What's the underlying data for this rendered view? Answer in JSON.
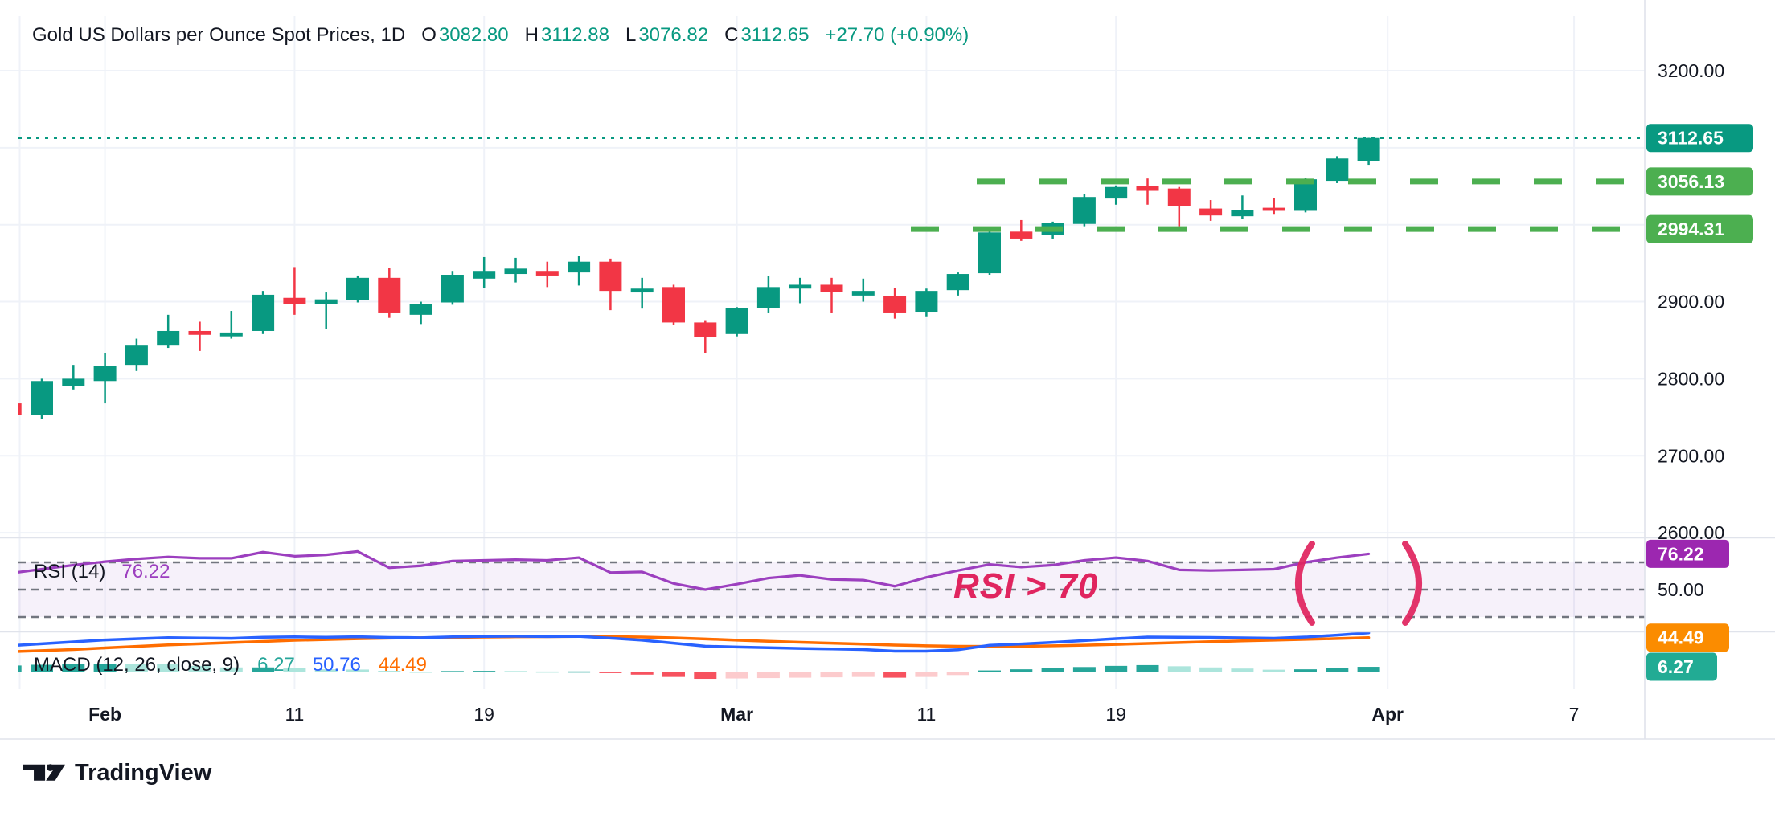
{
  "header": {
    "title": "Gold US Dollars per Ounce Spot Prices, 1D",
    "open_label": "O",
    "open": "3082.80",
    "high_label": "H",
    "high": "3112.88",
    "low_label": "L",
    "low": "3076.82",
    "close_label": "C",
    "close": "3112.65",
    "change": "+27.70 (+0.90%)"
  },
  "rsi_panel": {
    "name": "RSI (14)",
    "value": "76.22"
  },
  "macd_panel": {
    "name": "MACD (12, 26, close, 9)",
    "histogram": "6.27",
    "macd": "50.76",
    "signal": "44.49"
  },
  "annotation": {
    "text": "RSI > 70",
    "color": "#E0255F"
  },
  "watermark": {
    "text": "TradingView"
  },
  "colors": {
    "up": "#089981",
    "down": "#F23645",
    "hist_up": "#26A69A",
    "hist_up_light": "#ACE5DC",
    "hist_down": "#F7525F",
    "hist_down_light": "#FCCBCD",
    "macd": "#2962FF",
    "signal": "#FF6D00",
    "rsi": "#9C3FBF",
    "rsi_badge": "#9C27B0",
    "level_green": "#4CAF50",
    "last_price": "#089981",
    "annotation_pink": "#E0255F",
    "grid": "#EFF2F8",
    "separator": "#E0E3EB",
    "axis_text": "#131722",
    "rsi_dash": "#72767F",
    "badge_orange": "#FB8C00",
    "badge_hist": "#22AB94",
    "rsi_band_fill": "rgba(126,63,191,0.07)"
  },
  "axis": {
    "price_ticks": [
      {
        "label": "3200.00",
        "value": 3200
      },
      {
        "label": "2900.00",
        "value": 2900
      },
      {
        "label": "2800.00",
        "value": 2800
      },
      {
        "label": "2700.00",
        "value": 2700
      },
      {
        "label": "2600.00",
        "value": 2600
      }
    ],
    "rsi_tick": {
      "label": "50.00",
      "value": 50
    },
    "time_ticks": [
      {
        "label": "",
        "index": 0.3,
        "bold": false
      },
      {
        "label": "Feb",
        "index": 3,
        "bold": true
      },
      {
        "label": "11",
        "index": 9,
        "bold": false
      },
      {
        "label": "19",
        "index": 15,
        "bold": false
      },
      {
        "label": "Mar",
        "index": 23,
        "bold": true
      },
      {
        "label": "11",
        "index": 29,
        "bold": false
      },
      {
        "label": "19",
        "index": 35,
        "bold": false
      },
      {
        "label": "Apr",
        "index": 43.6,
        "bold": true
      },
      {
        "label": "7",
        "index": 49.5,
        "bold": false
      }
    ],
    "badges": [
      {
        "label": "3112.65",
        "bg": "#089981",
        "panel": "price",
        "value": 3112.65
      },
      {
        "label": "3056.13",
        "bg": "#4CAF50",
        "panel": "price",
        "value": 3056.13
      },
      {
        "label": "2994.31",
        "bg": "#4CAF50",
        "panel": "price",
        "value": 2994.31
      },
      {
        "label": "76.22",
        "bg": "#9C27B0",
        "panel": "rsi",
        "value": 76.22
      },
      {
        "label": "44.49",
        "bg": "#FB8C00",
        "panel": "macd",
        "value": 44.49
      },
      {
        "label": "6.27",
        "bg": "#22AB94",
        "panel": "macd",
        "value": 6.27
      }
    ]
  },
  "chart_data": {
    "type": "candlestick",
    "title": "Gold US Dollars per Ounce Spot Prices",
    "interval": "1D",
    "last_ohlc": {
      "open": 3082.8,
      "high": 3112.88,
      "low": 3076.82,
      "close": 3112.65,
      "change": 27.7,
      "change_pct": 0.9
    },
    "price_axis_ticks": [
      3200,
      2900,
      2800,
      2700,
      2600
    ],
    "price_gridlines": [
      3200,
      3100,
      3000,
      2900,
      2800,
      2700,
      2600
    ],
    "x_tick_labels": [
      "Feb",
      "11",
      "19",
      "Mar",
      "11",
      "19",
      "Apr",
      "7"
    ],
    "levels": {
      "last_close_dotted": 3112.65,
      "resistance_dashed": 3056.13,
      "support_dashed": 2994.31
    },
    "candles_ohlc": [
      [
        2768,
        2770,
        2750,
        2753
      ],
      [
        2753,
        2800,
        2748,
        2797
      ],
      [
        2791,
        2818,
        2786,
        2800
      ],
      [
        2797,
        2833,
        2768,
        2817
      ],
      [
        2818,
        2852,
        2810,
        2843
      ],
      [
        2843,
        2883,
        2840,
        2862
      ],
      [
        2862,
        2874,
        2836,
        2857
      ],
      [
        2855,
        2888,
        2852,
        2860
      ],
      [
        2862,
        2914,
        2858,
        2909
      ],
      [
        2905,
        2945,
        2883,
        2897
      ],
      [
        2897,
        2912,
        2865,
        2903
      ],
      [
        2902,
        2934,
        2899,
        2931
      ],
      [
        2931,
        2944,
        2879,
        2886
      ],
      [
        2883,
        2900,
        2871,
        2897
      ],
      [
        2899,
        2940,
        2896,
        2935
      ],
      [
        2930,
        2958,
        2918,
        2940
      ],
      [
        2936,
        2957,
        2925,
        2943
      ],
      [
        2940,
        2952,
        2919,
        2934
      ],
      [
        2938,
        2959,
        2921,
        2952
      ],
      [
        2952,
        2956,
        2889,
        2914
      ],
      [
        2912,
        2931,
        2891,
        2917
      ],
      [
        2919,
        2922,
        2870,
        2873
      ],
      [
        2873,
        2876,
        2833,
        2854
      ],
      [
        2858,
        2893,
        2855,
        2892
      ],
      [
        2892,
        2933,
        2886,
        2919
      ],
      [
        2917,
        2931,
        2898,
        2922
      ],
      [
        2922,
        2931,
        2886,
        2913
      ],
      [
        2908,
        2930,
        2900,
        2914
      ],
      [
        2907,
        2918,
        2878,
        2886
      ],
      [
        2887,
        2917,
        2881,
        2914
      ],
      [
        2915,
        2938,
        2908,
        2936
      ],
      [
        2937,
        2993,
        2935,
        2990
      ],
      [
        2991,
        3006,
        2979,
        2982
      ],
      [
        2987,
        3004,
        2982,
        3002
      ],
      [
        3001,
        3040,
        2998,
        3036
      ],
      [
        3034,
        3051,
        3026,
        3049
      ],
      [
        3050,
        3060,
        3026,
        3044
      ],
      [
        3047,
        3049,
        2998,
        3024
      ],
      [
        3021,
        3032,
        3005,
        3012
      ],
      [
        3011,
        3038,
        3008,
        3019
      ],
      [
        3022,
        3035,
        3013,
        3018
      ],
      [
        3018,
        3061,
        3016,
        3059
      ],
      [
        3057,
        3089,
        3054,
        3086
      ],
      [
        3082.8,
        3112.88,
        3076.82,
        3112.65
      ]
    ],
    "rsi_14": [
      62,
      65,
      68,
      70.5,
      72.5,
      74,
      73,
      73,
      77.5,
      74.5,
      75.5,
      78,
      66,
      67.5,
      71,
      71.5,
      72,
      71.5,
      73.5,
      62.5,
      63,
      54.5,
      50,
      54,
      58.5,
      60.5,
      57.5,
      57,
      52.5,
      59,
      64,
      68.5,
      66.5,
      68,
      71.5,
      73.5,
      71,
      64.5,
      64,
      64.5,
      65,
      70,
      73.5,
      76.22
    ],
    "rsi_levels": [
      70,
      50,
      30
    ],
    "rsi_current": 76.22,
    "macd_line": [
      34,
      36.5,
      39,
      41.5,
      43,
      44.5,
      44,
      43.5,
      45,
      45.5,
      45,
      45.7,
      44.8,
      44.4,
      45.5,
      46.1,
      46.3,
      45.9,
      46.2,
      43.8,
      41.2,
      37.2,
      33.3,
      32.2,
      31.3,
      30.4,
      29.7,
      29,
      26.8,
      26.8,
      28.7,
      34.5,
      36.2,
      38.3,
      40.6,
      43.1,
      45.3,
      45,
      44.7,
      44.2,
      43.7,
      45.2,
      47.8,
      50.76
    ],
    "signal_line": [
      26,
      27.5,
      29,
      31,
      33,
      35,
      36.5,
      38,
      39.5,
      41,
      42,
      43,
      43.8,
      44.4,
      44.8,
      45.2,
      45.6,
      45.8,
      46,
      45.8,
      45.2,
      44.2,
      42.8,
      41.2,
      39.8,
      38.4,
      37.2,
      36,
      34.8,
      33.8,
      33.2,
      33,
      33.2,
      33.8,
      34.6,
      35.6,
      36.8,
      38,
      39.2,
      40.2,
      41.2,
      42.2,
      43.3,
      44.49
    ],
    "macd_current": 50.76,
    "signal_current": 44.49,
    "histogram_current": 6.27
  }
}
